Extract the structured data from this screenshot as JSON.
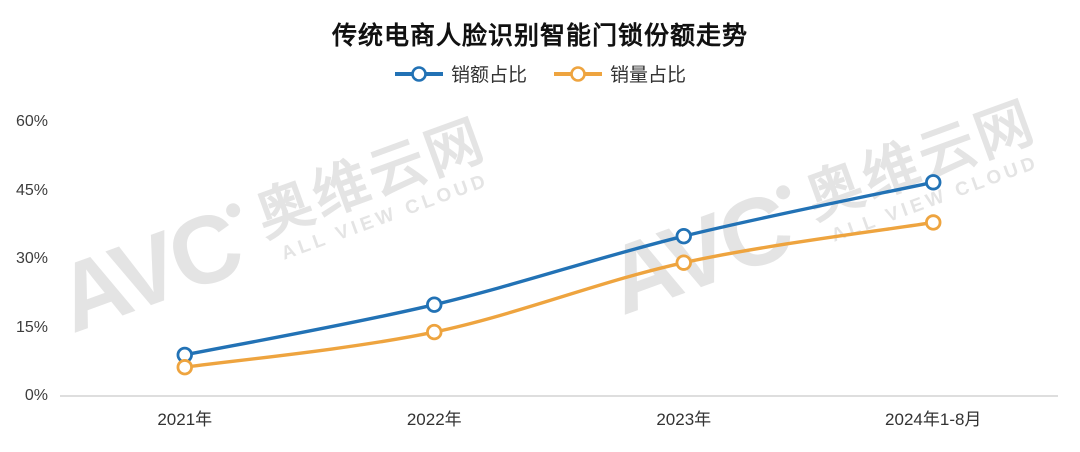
{
  "chart_data": {
    "type": "line",
    "title": "传统电商人脸识别智能门锁份额走势",
    "categories": [
      "2021年",
      "2022年",
      "2023年",
      "2024年1-8月"
    ],
    "series": [
      {
        "name": "销额占比",
        "color": "#2272B5",
        "values": [
          9,
          20,
          35,
          46.8
        ]
      },
      {
        "name": "销量占比",
        "color": "#EEA43F",
        "values": [
          6.3,
          14,
          29.2,
          38
        ]
      }
    ],
    "ylim": [
      0,
      60
    ],
    "yticks": [
      0,
      15,
      30,
      45,
      60
    ],
    "ytick_suffix": "%",
    "grid": false,
    "legend_position": "top",
    "marker": "open-circle",
    "smooth": true
  },
  "watermark": {
    "logo": "AVC",
    "cn": "奥维云网",
    "en": "ALL VIEW CLOUD"
  }
}
